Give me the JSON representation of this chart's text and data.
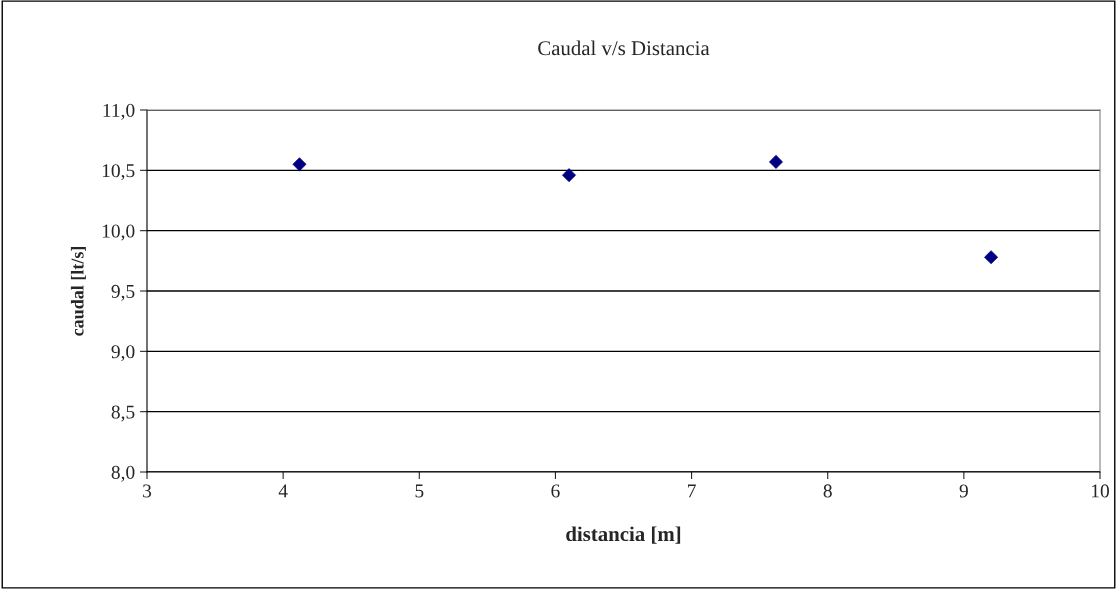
{
  "chart_data": {
    "type": "scatter",
    "title": "Caudal v/s Distancia",
    "xlabel": "distancia [m]",
    "ylabel": "caudal [lt/s]",
    "x": [
      4.12,
      6.1,
      7.62,
      9.2
    ],
    "values": [
      10.55,
      10.46,
      10.57,
      9.78
    ],
    "color": "#000080",
    "marker": "diamond",
    "xlim": [
      3,
      10
    ],
    "xticks": [
      3,
      4,
      5,
      6,
      7,
      8,
      9,
      10
    ],
    "ylim": [
      8.0,
      11.0
    ],
    "yticks": [
      {
        "value": 8.0,
        "label": "8,0"
      },
      {
        "value": 8.5,
        "label": "8,5"
      },
      {
        "value": 9.0,
        "label": "9,0"
      },
      {
        "value": 9.5,
        "label": "9,5"
      },
      {
        "value": 10.0,
        "label": "10,0"
      },
      {
        "value": 10.5,
        "label": "10,5"
      },
      {
        "value": 11.0,
        "label": "11,0"
      }
    ],
    "grid": "y",
    "legend": false
  }
}
